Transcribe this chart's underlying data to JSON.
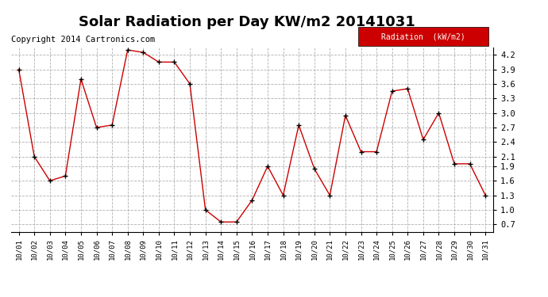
{
  "title": "Solar Radiation per Day KW/m2 20141031",
  "copyright_text": "Copyright 2014 Cartronics.com",
  "legend_label": "Radiation  (kW/m2)",
  "dates": [
    "10/01",
    "10/02",
    "10/03",
    "10/04",
    "10/05",
    "10/06",
    "10/07",
    "10/08",
    "10/09",
    "10/10",
    "10/11",
    "10/12",
    "10/13",
    "10/14",
    "10/15",
    "10/16",
    "10/17",
    "10/18",
    "10/19",
    "10/20",
    "10/21",
    "10/22",
    "10/23",
    "10/24",
    "10/25",
    "10/26",
    "10/27",
    "10/28",
    "10/29",
    "10/30",
    "10/31"
  ],
  "values": [
    3.9,
    2.1,
    1.6,
    1.7,
    3.7,
    2.7,
    2.75,
    4.3,
    4.25,
    4.05,
    4.05,
    3.6,
    1.0,
    0.75,
    0.75,
    1.2,
    1.9,
    1.3,
    2.75,
    1.85,
    1.3,
    2.95,
    2.2,
    2.2,
    3.45,
    3.5,
    2.45,
    3.0,
    1.95,
    1.95,
    1.3
  ],
  "line_color": "#cc0000",
  "marker_color": "#000000",
  "background_color": "#ffffff",
  "grid_color": "#b0b0b0",
  "ylim": [
    0.55,
    4.35
  ],
  "yticks": [
    0.7,
    1.0,
    1.3,
    1.6,
    1.9,
    2.1,
    2.4,
    2.7,
    3.0,
    3.3,
    3.6,
    3.9,
    4.2
  ],
  "title_fontsize": 13,
  "copyright_fontsize": 7.5,
  "legend_bg": "#cc0000",
  "legend_text_color": "#ffffff"
}
